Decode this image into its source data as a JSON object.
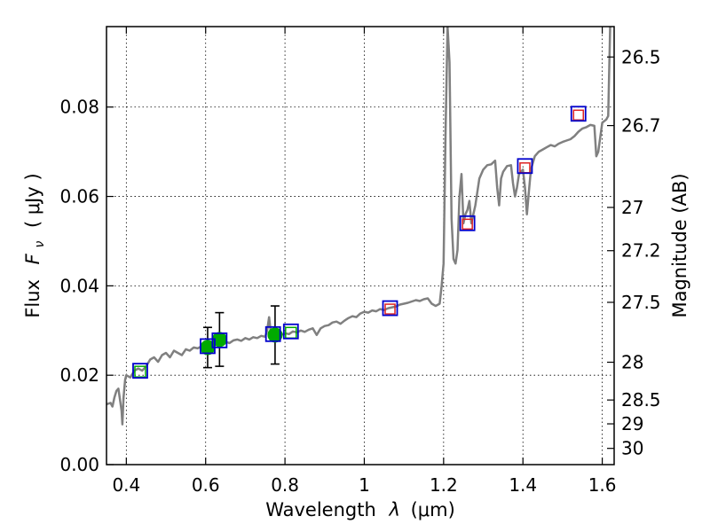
{
  "chart_data": {
    "type": "scatter",
    "x_axis": {
      "label_text": "Wavelength",
      "label_symbol": "λ",
      "label_unit": "(μm)",
      "range": [
        0.35,
        1.63
      ],
      "ticks": [
        0.4,
        0.6,
        0.8,
        1.0,
        1.2,
        1.4,
        1.6
      ],
      "tick_labels": [
        "0.4",
        "0.6",
        "0.8",
        "1",
        "1.2",
        "1.4",
        "1.6"
      ]
    },
    "y_axis": {
      "label_text": "Flux",
      "label_symbol": "F",
      "label_sub": "ν",
      "label_unit": "( μJy )",
      "range": [
        0.0,
        0.098
      ],
      "ticks": [
        0.0,
        0.02,
        0.04,
        0.06,
        0.08
      ],
      "tick_labels": [
        "0.00",
        "0.02",
        "0.04",
        "0.06",
        "0.08"
      ]
    },
    "y2_axis": {
      "label": "Magnitude (AB)",
      "ticks": [
        26.5,
        26.7,
        27,
        27.2,
        27.5,
        28,
        28.5,
        29,
        30
      ],
      "tick_labels": [
        "26.5",
        "26.7",
        "27",
        "27.2",
        "27.5",
        "28",
        "28.5",
        "29",
        "30"
      ]
    },
    "grid": true,
    "series": [
      {
        "name": "model-sed",
        "kind": "line",
        "color": "#808080",
        "points": [
          [
            0.35,
            0.0135
          ],
          [
            0.36,
            0.0138
          ],
          [
            0.365,
            0.013
          ],
          [
            0.37,
            0.015
          ],
          [
            0.375,
            0.0165
          ],
          [
            0.38,
            0.017
          ],
          [
            0.385,
            0.014
          ],
          [
            0.388,
            0.012
          ],
          [
            0.39,
            0.009
          ],
          [
            0.393,
            0.015
          ],
          [
            0.397,
            0.019
          ],
          [
            0.4,
            0.02
          ],
          [
            0.41,
            0.0195
          ],
          [
            0.42,
            0.021
          ],
          [
            0.43,
            0.0215
          ],
          [
            0.44,
            0.021
          ],
          [
            0.45,
            0.022
          ],
          [
            0.46,
            0.0235
          ],
          [
            0.47,
            0.024
          ],
          [
            0.48,
            0.023
          ],
          [
            0.49,
            0.0245
          ],
          [
            0.5,
            0.025
          ],
          [
            0.51,
            0.024
          ],
          [
            0.52,
            0.0255
          ],
          [
            0.53,
            0.025
          ],
          [
            0.54,
            0.0245
          ],
          [
            0.55,
            0.0258
          ],
          [
            0.56,
            0.0255
          ],
          [
            0.57,
            0.0262
          ],
          [
            0.58,
            0.026
          ],
          [
            0.59,
            0.0265
          ],
          [
            0.6,
            0.0262
          ],
          [
            0.61,
            0.0268
          ],
          [
            0.62,
            0.027
          ],
          [
            0.63,
            0.0268
          ],
          [
            0.64,
            0.0272
          ],
          [
            0.65,
            0.0275
          ],
          [
            0.66,
            0.0272
          ],
          [
            0.67,
            0.0278
          ],
          [
            0.68,
            0.028
          ],
          [
            0.69,
            0.0277
          ],
          [
            0.7,
            0.0283
          ],
          [
            0.71,
            0.028
          ],
          [
            0.72,
            0.0285
          ],
          [
            0.73,
            0.0283
          ],
          [
            0.74,
            0.0288
          ],
          [
            0.75,
            0.0286
          ],
          [
            0.755,
            0.03
          ],
          [
            0.76,
            0.033
          ],
          [
            0.765,
            0.029
          ],
          [
            0.77,
            0.0288
          ],
          [
            0.78,
            0.0292
          ],
          [
            0.79,
            0.029
          ],
          [
            0.8,
            0.0294
          ],
          [
            0.81,
            0.0292
          ],
          [
            0.82,
            0.0298
          ],
          [
            0.83,
            0.0296
          ],
          [
            0.84,
            0.03
          ],
          [
            0.85,
            0.0297
          ],
          [
            0.86,
            0.0302
          ],
          [
            0.87,
            0.0305
          ],
          [
            0.88,
            0.029
          ],
          [
            0.89,
            0.0305
          ],
          [
            0.9,
            0.031
          ],
          [
            0.91,
            0.0312
          ],
          [
            0.92,
            0.0318
          ],
          [
            0.93,
            0.032
          ],
          [
            0.94,
            0.0315
          ],
          [
            0.95,
            0.0322
          ],
          [
            0.96,
            0.0328
          ],
          [
            0.97,
            0.0332
          ],
          [
            0.98,
            0.033
          ],
          [
            0.99,
            0.0338
          ],
          [
            1.0,
            0.0342
          ],
          [
            1.01,
            0.034
          ],
          [
            1.02,
            0.0345
          ],
          [
            1.03,
            0.0343
          ],
          [
            1.04,
            0.0348
          ],
          [
            1.05,
            0.0346
          ],
          [
            1.06,
            0.035
          ],
          [
            1.07,
            0.0352
          ],
          [
            1.08,
            0.0354
          ],
          [
            1.09,
            0.0358
          ],
          [
            1.1,
            0.036
          ],
          [
            1.11,
            0.0362
          ],
          [
            1.12,
            0.0365
          ],
          [
            1.13,
            0.0368
          ],
          [
            1.14,
            0.0366
          ],
          [
            1.15,
            0.037
          ],
          [
            1.16,
            0.0372
          ],
          [
            1.17,
            0.036
          ],
          [
            1.18,
            0.0355
          ],
          [
            1.19,
            0.036
          ],
          [
            1.195,
            0.04
          ],
          [
            1.2,
            0.045
          ],
          [
            1.205,
            0.075
          ],
          [
            1.21,
            0.098
          ],
          [
            1.215,
            0.09
          ],
          [
            1.22,
            0.055
          ],
          [
            1.225,
            0.046
          ],
          [
            1.23,
            0.045
          ],
          [
            1.235,
            0.048
          ],
          [
            1.24,
            0.06
          ],
          [
            1.245,
            0.065
          ],
          [
            1.25,
            0.054
          ],
          [
            1.255,
            0.056
          ],
          [
            1.26,
            0.057
          ],
          [
            1.265,
            0.059
          ],
          [
            1.27,
            0.054
          ],
          [
            1.28,
            0.058
          ],
          [
            1.29,
            0.064
          ],
          [
            1.3,
            0.066
          ],
          [
            1.31,
            0.067
          ],
          [
            1.32,
            0.0672
          ],
          [
            1.33,
            0.068
          ],
          [
            1.335,
            0.062
          ],
          [
            1.34,
            0.058
          ],
          [
            1.345,
            0.064
          ],
          [
            1.35,
            0.0655
          ],
          [
            1.36,
            0.0668
          ],
          [
            1.37,
            0.067
          ],
          [
            1.375,
            0.063
          ],
          [
            1.38,
            0.06
          ],
          [
            1.385,
            0.062
          ],
          [
            1.39,
            0.065
          ],
          [
            1.4,
            0.066
          ],
          [
            1.405,
            0.062
          ],
          [
            1.41,
            0.056
          ],
          [
            1.415,
            0.061
          ],
          [
            1.42,
            0.066
          ],
          [
            1.43,
            0.069
          ],
          [
            1.44,
            0.07
          ],
          [
            1.45,
            0.0705
          ],
          [
            1.46,
            0.071
          ],
          [
            1.47,
            0.0715
          ],
          [
            1.48,
            0.0712
          ],
          [
            1.49,
            0.0718
          ],
          [
            1.5,
            0.0722
          ],
          [
            1.51,
            0.0725
          ],
          [
            1.52,
            0.0728
          ],
          [
            1.53,
            0.0735
          ],
          [
            1.54,
            0.0745
          ],
          [
            1.55,
            0.0752
          ],
          [
            1.56,
            0.0755
          ],
          [
            1.57,
            0.076
          ],
          [
            1.58,
            0.0758
          ],
          [
            1.585,
            0.069
          ],
          [
            1.59,
            0.07
          ],
          [
            1.6,
            0.0765
          ],
          [
            1.61,
            0.0772
          ],
          [
            1.615,
            0.078
          ],
          [
            1.62,
            0.098
          ]
        ]
      },
      {
        "name": "observed-green-points",
        "kind": "scatter-errorbar",
        "color": "#00aa00",
        "points": [
          {
            "x": 0.605,
            "y": 0.0262,
            "err": 0.0045
          },
          {
            "x": 0.635,
            "y": 0.028,
            "err": 0.006
          },
          {
            "x": 0.775,
            "y": 0.029,
            "err": 0.0065
          }
        ]
      },
      {
        "name": "model-photometry-blue-squares",
        "kind": "scatter",
        "color": "#0000cc",
        "points": [
          {
            "x": 0.435,
            "y": 0.021
          },
          {
            "x": 0.605,
            "y": 0.0265
          },
          {
            "x": 0.635,
            "y": 0.0278
          },
          {
            "x": 0.77,
            "y": 0.0292
          },
          {
            "x": 0.815,
            "y": 0.0298
          },
          {
            "x": 1.065,
            "y": 0.035
          },
          {
            "x": 1.26,
            "y": 0.054
          },
          {
            "x": 1.405,
            "y": 0.0668
          },
          {
            "x": 1.54,
            "y": 0.0785
          }
        ]
      },
      {
        "name": "observed-red-squares",
        "kind": "scatter",
        "color": "#dd2222",
        "points": [
          {
            "x": 1.065,
            "y": 0.0348
          },
          {
            "x": 1.26,
            "y": 0.0538
          },
          {
            "x": 1.405,
            "y": 0.0664
          },
          {
            "x": 1.54,
            "y": 0.0782
          }
        ]
      },
      {
        "name": "observed-green-squares",
        "kind": "scatter",
        "color": "#00aa00",
        "points": [
          {
            "x": 0.435,
            "y": 0.0208
          },
          {
            "x": 0.815,
            "y": 0.0295
          }
        ]
      }
    ]
  }
}
